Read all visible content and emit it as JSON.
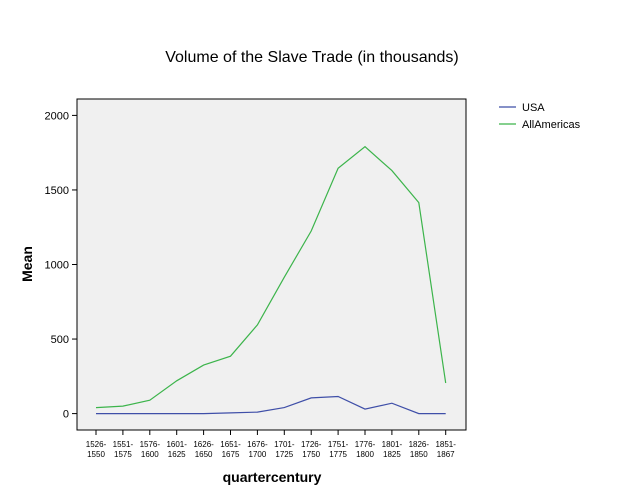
{
  "chart_data": {
    "type": "line",
    "title": "Volume of the Slave Trade (in thousands)",
    "xlabel": "quartercentury",
    "ylabel": "Mean",
    "ylim": [
      -110,
      2110
    ],
    "yticks": [
      0,
      500,
      1000,
      1500,
      2000
    ],
    "categories": [
      [
        "1526-",
        "1550"
      ],
      [
        "1551-",
        "1575"
      ],
      [
        "1576-",
        "1600"
      ],
      [
        "1601-",
        "1625"
      ],
      [
        "1626-",
        "1650"
      ],
      [
        "1651-",
        "1675"
      ],
      [
        "1676-",
        "1700"
      ],
      [
        "1701-",
        "1725"
      ],
      [
        "1726-",
        "1750"
      ],
      [
        "1751-",
        "1775"
      ],
      [
        "1776-",
        "1800"
      ],
      [
        "1801-",
        "1825"
      ],
      [
        "1826-",
        "1850"
      ],
      [
        "1851-",
        "1867"
      ]
    ],
    "series": [
      {
        "name": "USA",
        "color": "#3f4fa8",
        "values": [
          0,
          0,
          0,
          0,
          0,
          5,
          10,
          40,
          105,
          115,
          30,
          70,
          0,
          0
        ]
      },
      {
        "name": "AllAmericas",
        "color": "#3cb44b",
        "values": [
          40,
          50,
          90,
          220,
          325,
          385,
          595,
          915,
          1225,
          1645,
          1790,
          1630,
          1415,
          205
        ]
      }
    ],
    "grid": false,
    "plot_background": "#f0f0f0",
    "legend_position": "right-top"
  }
}
